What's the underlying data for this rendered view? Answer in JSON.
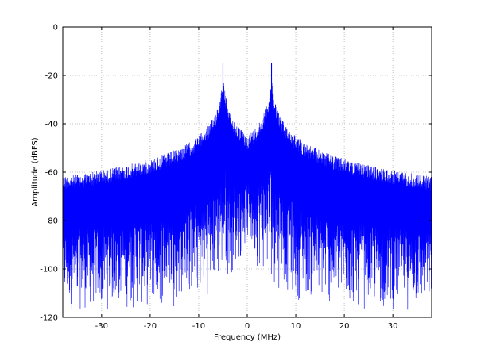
{
  "chart_data": {
    "type": "line",
    "title": "",
    "xlabel": "Frequency (MHz)",
    "ylabel": "Amplitude (dBFS)",
    "xlim": [
      -38,
      38
    ],
    "ylim": [
      -120,
      0
    ],
    "xticks": [
      -30,
      -20,
      -10,
      0,
      10,
      20,
      30
    ],
    "yticks": [
      0,
      -20,
      -40,
      -60,
      -80,
      -100,
      -120
    ],
    "grid": true,
    "grid_style": "dotted",
    "series_color": "#0000ff",
    "carriers": [
      {
        "x": -5,
        "y": -15
      },
      {
        "x": 5,
        "y": -15
      }
    ],
    "spurs": [
      {
        "x": -35,
        "y": -81
      },
      {
        "x": -30,
        "y": -86
      },
      {
        "x": -27.5,
        "y": -82
      },
      {
        "x": -25,
        "y": -78
      },
      {
        "x": -21.5,
        "y": -77
      },
      {
        "x": -15,
        "y": -64
      },
      {
        "x": -10,
        "y": -59
      },
      {
        "x": 10,
        "y": -59
      },
      {
        "x": 15,
        "y": -64
      },
      {
        "x": 21.5,
        "y": -77
      },
      {
        "x": 25,
        "y": -78
      },
      {
        "x": 27.5,
        "y": -82
      },
      {
        "x": 30,
        "y": -86
      },
      {
        "x": 35,
        "y": -81
      }
    ],
    "noise_floor": {
      "upper_edge_dB": -93,
      "upper_edge_near_carriers_dB": -83,
      "lower_edge_dB": -118,
      "lower_edge_near_center_dB": -92
    }
  }
}
